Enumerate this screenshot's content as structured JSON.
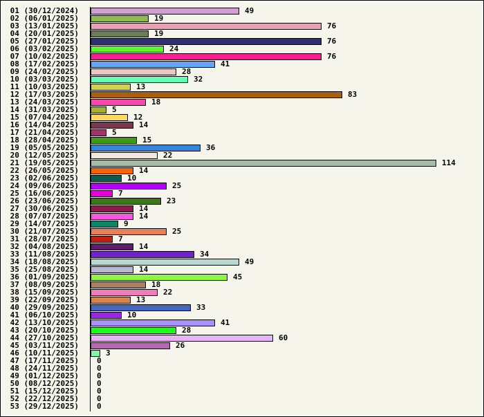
{
  "chart_data": {
    "type": "bar",
    "orientation": "horizontal",
    "title": "",
    "xlabel": "",
    "ylabel": "",
    "xlim": [
      0,
      114
    ],
    "grid": false,
    "categories": [
      "01 (30/12/2024)",
      "02 (06/01/2025)",
      "03 (13/01/2025)",
      "04 (20/01/2025)",
      "05 (27/01/2025)",
      "06 (03/02/2025)",
      "07 (10/02/2025)",
      "08 (17/02/2025)",
      "09 (24/02/2025)",
      "10 (03/03/2025)",
      "11 (10/03/2025)",
      "12 (17/03/2025)",
      "13 (24/03/2025)",
      "14 (31/03/2025)",
      "15 (07/04/2025)",
      "16 (14/04/2025)",
      "17 (21/04/2025)",
      "18 (28/04/2025)",
      "19 (05/05/2025)",
      "20 (12/05/2025)",
      "21 (19/05/2025)",
      "22 (26/05/2025)",
      "23 (02/06/2025)",
      "24 (09/06/2025)",
      "25 (16/06/2025)",
      "26 (23/06/2025)",
      "27 (30/06/2025)",
      "28 (07/07/2025)",
      "29 (14/07/2025)",
      "30 (21/07/2025)",
      "31 (28/07/2025)",
      "32 (04/08/2025)",
      "33 (11/08/2025)",
      "34 (18/08/2025)",
      "35 (25/08/2025)",
      "36 (01/09/2025)",
      "37 (08/09/2025)",
      "38 (15/09/2025)",
      "39 (22/09/2025)",
      "40 (29/09/2025)",
      "41 (06/10/2025)",
      "42 (13/10/2025)",
      "43 (20/10/2025)",
      "44 (27/10/2025)",
      "45 (03/11/2025)",
      "46 (10/11/2025)",
      "47 (17/11/2025)",
      "48 (24/11/2025)",
      "49 (01/12/2025)",
      "50 (08/12/2025)",
      "51 (15/12/2025)",
      "52 (22/12/2025)",
      "53 (29/12/2025)"
    ],
    "values": [
      49,
      19,
      76,
      19,
      76,
      24,
      76,
      41,
      28,
      32,
      13,
      83,
      18,
      5,
      12,
      14,
      5,
      15,
      36,
      22,
      114,
      14,
      10,
      25,
      7,
      23,
      14,
      14,
      9,
      25,
      7,
      14,
      34,
      49,
      14,
      45,
      18,
      22,
      13,
      33,
      10,
      41,
      28,
      60,
      26,
      3,
      0,
      0,
      0,
      0,
      0,
      0,
      0
    ],
    "colors": [
      "#d4a0d4",
      "#8fba50",
      "#e8a0b4",
      "#687e54",
      "#303070",
      "#5ef530",
      "#f81e90",
      "#64a4f4",
      "#e8c8c0",
      "#64ffb4",
      "#d0d050",
      "#a86010",
      "#f848ac",
      "#a8b030",
      "#ffd860",
      "#783850",
      "#a03468",
      "#3c9c14",
      "#3484d8",
      "#f0e8dc",
      "#a4bca8",
      "#f8640c",
      "#0c5c50",
      "#b400f8",
      "#e400d8",
      "#3c7818",
      "#8c1c4c",
      "#f858e0",
      "#0c8868",
      "#e8805c",
      "#c02014",
      "#601c6c",
      "#6c24c8",
      "#b8d8d0",
      "#b8b8d4",
      "#90f444",
      "#a88064",
      "#f07cb8",
      "#dc8448",
      "#4468c0",
      "#9828e0",
      "#a890ff",
      "#1cf820",
      "#e8b4f8",
      "#b468b0",
      "#80f8a8",
      "#cccccc",
      "#cccccc",
      "#cccccc",
      "#cccccc",
      "#cccccc",
      "#cccccc",
      "#cccccc"
    ]
  }
}
